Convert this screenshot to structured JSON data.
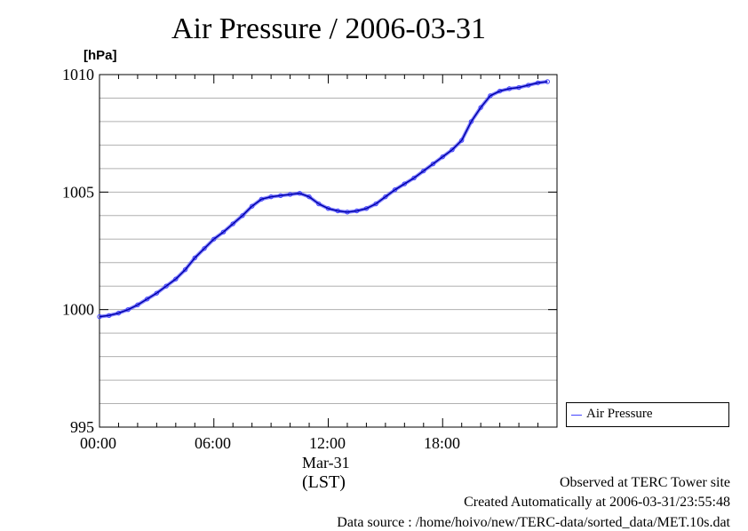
{
  "chart_data": {
    "type": "line",
    "title": "Air Pressure / 2006-03-31",
    "ylabel": "[hPa]",
    "ylim": [
      995,
      1010
    ],
    "yticks": [
      995,
      1000,
      1005,
      1010
    ],
    "xticks": [
      "00:00",
      "06:00",
      "12:00",
      "18:00"
    ],
    "xdate": "Mar-31",
    "xlabel": "(LST)",
    "grid": "horizontal",
    "legend_position": "right-bottom",
    "series": [
      {
        "name": "Air Pressure",
        "color": "#4444ff",
        "x_hours": [
          0,
          0.5,
          1,
          1.5,
          2,
          2.5,
          3,
          3.5,
          4,
          4.5,
          5,
          5.5,
          6,
          6.5,
          7,
          7.5,
          8,
          8.5,
          9,
          9.5,
          10,
          10.5,
          11,
          11.5,
          12,
          12.5,
          13,
          13.5,
          14,
          14.5,
          15,
          15.5,
          16,
          16.5,
          17,
          17.5,
          18,
          18.5,
          19,
          19.5,
          20,
          20.5,
          21,
          21.5,
          22,
          22.5,
          23,
          23.5
        ],
        "values": [
          999.7,
          999.75,
          999.85,
          1000.0,
          1000.2,
          1000.45,
          1000.7,
          1001.0,
          1001.3,
          1001.7,
          1002.2,
          1002.6,
          1003.0,
          1003.3,
          1003.65,
          1004.0,
          1004.4,
          1004.7,
          1004.8,
          1004.85,
          1004.9,
          1004.95,
          1004.8,
          1004.5,
          1004.3,
          1004.2,
          1004.15,
          1004.2,
          1004.3,
          1004.5,
          1004.8,
          1005.1,
          1005.35,
          1005.6,
          1005.9,
          1006.2,
          1006.5,
          1006.8,
          1007.2,
          1008.0,
          1008.6,
          1009.1,
          1009.3,
          1009.4,
          1009.45,
          1009.55,
          1009.65,
          1009.7
        ]
      }
    ]
  },
  "footer": {
    "site": "Observed at TERC Tower site",
    "created": "Created Automatically at 2006-03-31/23:55:48",
    "source": "Data source : /home/hoivo/new/TERC-data/sorted_data/MET.10s.dat"
  }
}
